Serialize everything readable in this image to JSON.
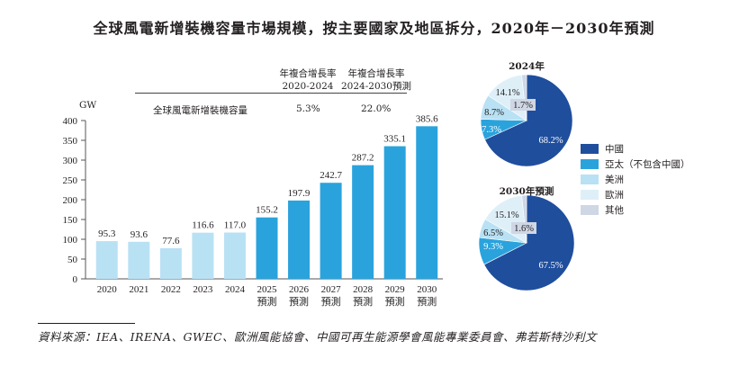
{
  "title": "全球風電新增裝機容量市場規模，按主要國家及地區拆分，2020年－2030年預測",
  "cagr_table": {
    "headers": [
      {
        "line1": "年複合增長率",
        "line2": "2020-2024"
      },
      {
        "line1": "年複合增長率",
        "line2": "2024-2030預測"
      }
    ],
    "row_label": "全球風電新增裝機容量",
    "values": [
      "5.3%",
      "22.0%"
    ]
  },
  "chart_data": [
    {
      "type": "bar",
      "title": "全球風電新增裝機容量",
      "xlabel": "",
      "ylabel": "GW",
      "ylim": [
        0,
        400
      ],
      "yticks": [
        0,
        50,
        100,
        150,
        200,
        250,
        300,
        350,
        400
      ],
      "grid": false,
      "categories": [
        {
          "year": "2020",
          "sub": ""
        },
        {
          "year": "2021",
          "sub": ""
        },
        {
          "year": "2022",
          "sub": ""
        },
        {
          "year": "2023",
          "sub": ""
        },
        {
          "year": "2024",
          "sub": ""
        },
        {
          "year": "2025",
          "sub": "預測"
        },
        {
          "year": "2026",
          "sub": "預測"
        },
        {
          "year": "2027",
          "sub": "預測"
        },
        {
          "year": "2028",
          "sub": "預測"
        },
        {
          "year": "2029",
          "sub": "預測"
        },
        {
          "year": "2030",
          "sub": "預測"
        }
      ],
      "values": [
        95.3,
        93.6,
        77.6,
        116.6,
        117.0,
        155.2,
        197.9,
        242.7,
        287.2,
        335.1,
        385.6
      ],
      "value_labels": [
        "95.3",
        "93.6",
        "77.6",
        "116.6",
        "117.0",
        "155.2",
        "197.9",
        "242.7",
        "287.2",
        "335.1",
        "385.6"
      ],
      "colors": {
        "historical": "#b9e1f4",
        "forecast": "#2aa3dd"
      },
      "forecast_start_index": 5
    },
    {
      "type": "pie",
      "title": "2024年",
      "slices": [
        {
          "name": "中國",
          "value": 68.2,
          "label": "68.2%"
        },
        {
          "name": "亞太（不包含中國）",
          "value": 7.3,
          "label": "7.3%"
        },
        {
          "name": "美洲",
          "value": 8.7,
          "label": "8.7%"
        },
        {
          "name": "歐洲",
          "value": 14.1,
          "label": "14.1%"
        },
        {
          "name": "其他",
          "value": 1.7,
          "label": "1.7%"
        }
      ]
    },
    {
      "type": "pie",
      "title": "2030年預測",
      "slices": [
        {
          "name": "中國",
          "value": 67.5,
          "label": "67.5%"
        },
        {
          "name": "亞太（不包含中國）",
          "value": 9.3,
          "label": "9.3%"
        },
        {
          "name": "美洲",
          "value": 6.5,
          "label": "6.5%"
        },
        {
          "name": "歐洲",
          "value": 15.1,
          "label": "15.1%"
        },
        {
          "name": "其他",
          "value": 1.6,
          "label": "1.6%"
        }
      ]
    }
  ],
  "legend": [
    {
      "label": "中國",
      "color": "#1f4e9d"
    },
    {
      "label": "亞太（不包含中國）",
      "color": "#2aa3dd"
    },
    {
      "label": "美洲",
      "color": "#b9e1f4"
    },
    {
      "label": "歐洲",
      "color": "#deeff8"
    },
    {
      "label": "其他",
      "color": "#cfd6e4"
    }
  ],
  "footer": "資料來源：IEA、IRENA、GWEC、歐洲風能協會、中國可再生能源學會風能專業委員會、弗若斯特沙利文"
}
